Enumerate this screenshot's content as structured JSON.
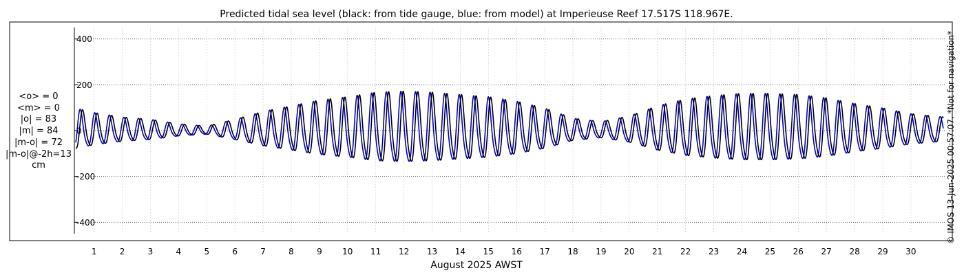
{
  "chart_data": {
    "type": "line",
    "title": "Predicted tidal sea level (black: from tide gauge, blue: from model) at Imperieuse Reef 17.517S 118.967E.",
    "xlabel": "August 2025 AWST",
    "ylabel": "",
    "xlim": [
      0.3,
      31.2
    ],
    "ylim": [
      -450,
      450
    ],
    "yticks": [
      400,
      200,
      0,
      -200,
      -400
    ],
    "ytick_labels": [
      "400",
      "200",
      "0",
      "-200",
      "-400"
    ],
    "xticks": [
      1,
      2,
      3,
      4,
      5,
      6,
      7,
      8,
      9,
      10,
      11,
      12,
      13,
      14,
      15,
      16,
      17,
      18,
      19,
      20,
      21,
      22,
      23,
      24,
      25,
      26,
      27,
      28,
      29,
      30
    ],
    "xtick_labels": [
      "1",
      "2",
      "3",
      "4",
      "5",
      "6",
      "7",
      "8",
      "9",
      "10",
      "11",
      "12",
      "13",
      "14",
      "15",
      "16",
      "17",
      "18",
      "19",
      "20",
      "21",
      "22",
      "23",
      "24",
      "25",
      "26",
      "27",
      "28",
      "29",
      "30"
    ],
    "grid": true,
    "legend": "none",
    "units": "cm",
    "series": [
      {
        "color": "#000000",
        "model": "tide-gauge",
        "phase_shift_days": 0.083
      },
      {
        "color": "#0000cc",
        "model": "model",
        "phase_shift_days": 0
      }
    ],
    "tide_model": {
      "period_days": 0.5175,
      "envelope_days": [
        0.35,
        1,
        2,
        3,
        4,
        5,
        6,
        7,
        8,
        9,
        10,
        11,
        12,
        13,
        14,
        15,
        16,
        17,
        18,
        19,
        20,
        21,
        22,
        23,
        24,
        25,
        26,
        27,
        28,
        29,
        30,
        31.2
      ],
      "envelope_amplitude_cm": [
        100,
        80,
        60,
        50,
        30,
        20,
        50,
        85,
        110,
        135,
        150,
        170,
        175,
        170,
        160,
        150,
        130,
        100,
        55,
        40,
        65,
        110,
        140,
        155,
        165,
        165,
        160,
        145,
        120,
        100,
        75,
        60
      ]
    }
  },
  "stats": {
    "lines": [
      "<o> = 0",
      "<m> = 0",
      "|o| = 83",
      "|m| = 84",
      "|m-o| = 72",
      "|m-o|@-2h=13",
      "cm"
    ]
  },
  "copyright": "© IMOS 13-Jun-2025 00:57:07. *Not for navigation*"
}
